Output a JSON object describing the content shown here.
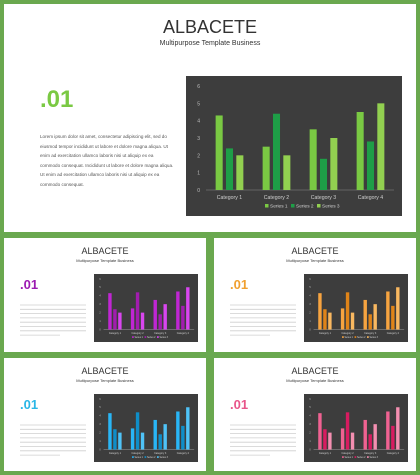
{
  "main": {
    "title": "ALBACETE",
    "subtitle": "Multipurpose Template Business",
    "number": ".01",
    "body": "Lorem ipsum dolor sit amet, consectetur adipiscing elit, sed do eiusmod tempor incididunt ut labore et dolore magna aliqua. Ut enim ad exercitation ullamco laboris nisi ut aliquip ex ea commodo consequat. Incididunt ut labore et dolore magna aliqua. Ut enim ad exercitation ullamco laboris nisi ut aliquip ex ea commodo consequat.",
    "accent": "#7ac943"
  },
  "thumbs": [
    {
      "title": "ALBACETE",
      "subtitle": "Multipurpose Template Business",
      "number": ".01",
      "accent": "#9c1ab1",
      "palette": [
        "#c026d3",
        "#a21caf",
        "#d946ef"
      ]
    },
    {
      "title": "ALBACETE",
      "subtitle": "Multipurpose Template Business",
      "number": ".01",
      "accent": "#f0a030",
      "palette": [
        "#f7a440",
        "#e08418",
        "#f9b860"
      ]
    },
    {
      "title": "ALBACETE",
      "subtitle": "Multipurpose Template Business",
      "number": ".01",
      "accent": "#29b6e6",
      "palette": [
        "#29b6f6",
        "#0f8ec8",
        "#4fc3f7"
      ]
    },
    {
      "title": "ALBACETE",
      "subtitle": "Multipurpose Template Business",
      "number": ".01",
      "accent": "#e8558a",
      "palette": [
        "#f06292",
        "#d81b60",
        "#f48fb1"
      ]
    }
  ],
  "chart_data": {
    "type": "bar",
    "categories": [
      "Category 1",
      "Category 2",
      "Category 3",
      "Category 4"
    ],
    "series": [
      {
        "name": "Series 1",
        "values": [
          4.3,
          2.5,
          3.5,
          4.5
        ]
      },
      {
        "name": "Series 2",
        "values": [
          2.4,
          4.4,
          1.8,
          2.8
        ]
      },
      {
        "name": "Series 3",
        "values": [
          2.0,
          2.0,
          3.0,
          5.0
        ]
      }
    ],
    "ylim": [
      0,
      6
    ],
    "yticks": [
      "0",
      "1",
      "2",
      "3",
      "4",
      "5",
      "6"
    ],
    "legend": "bottom",
    "grid": false,
    "colors": [
      "#7ac943",
      "#1e9e47",
      "#92d050"
    ]
  }
}
